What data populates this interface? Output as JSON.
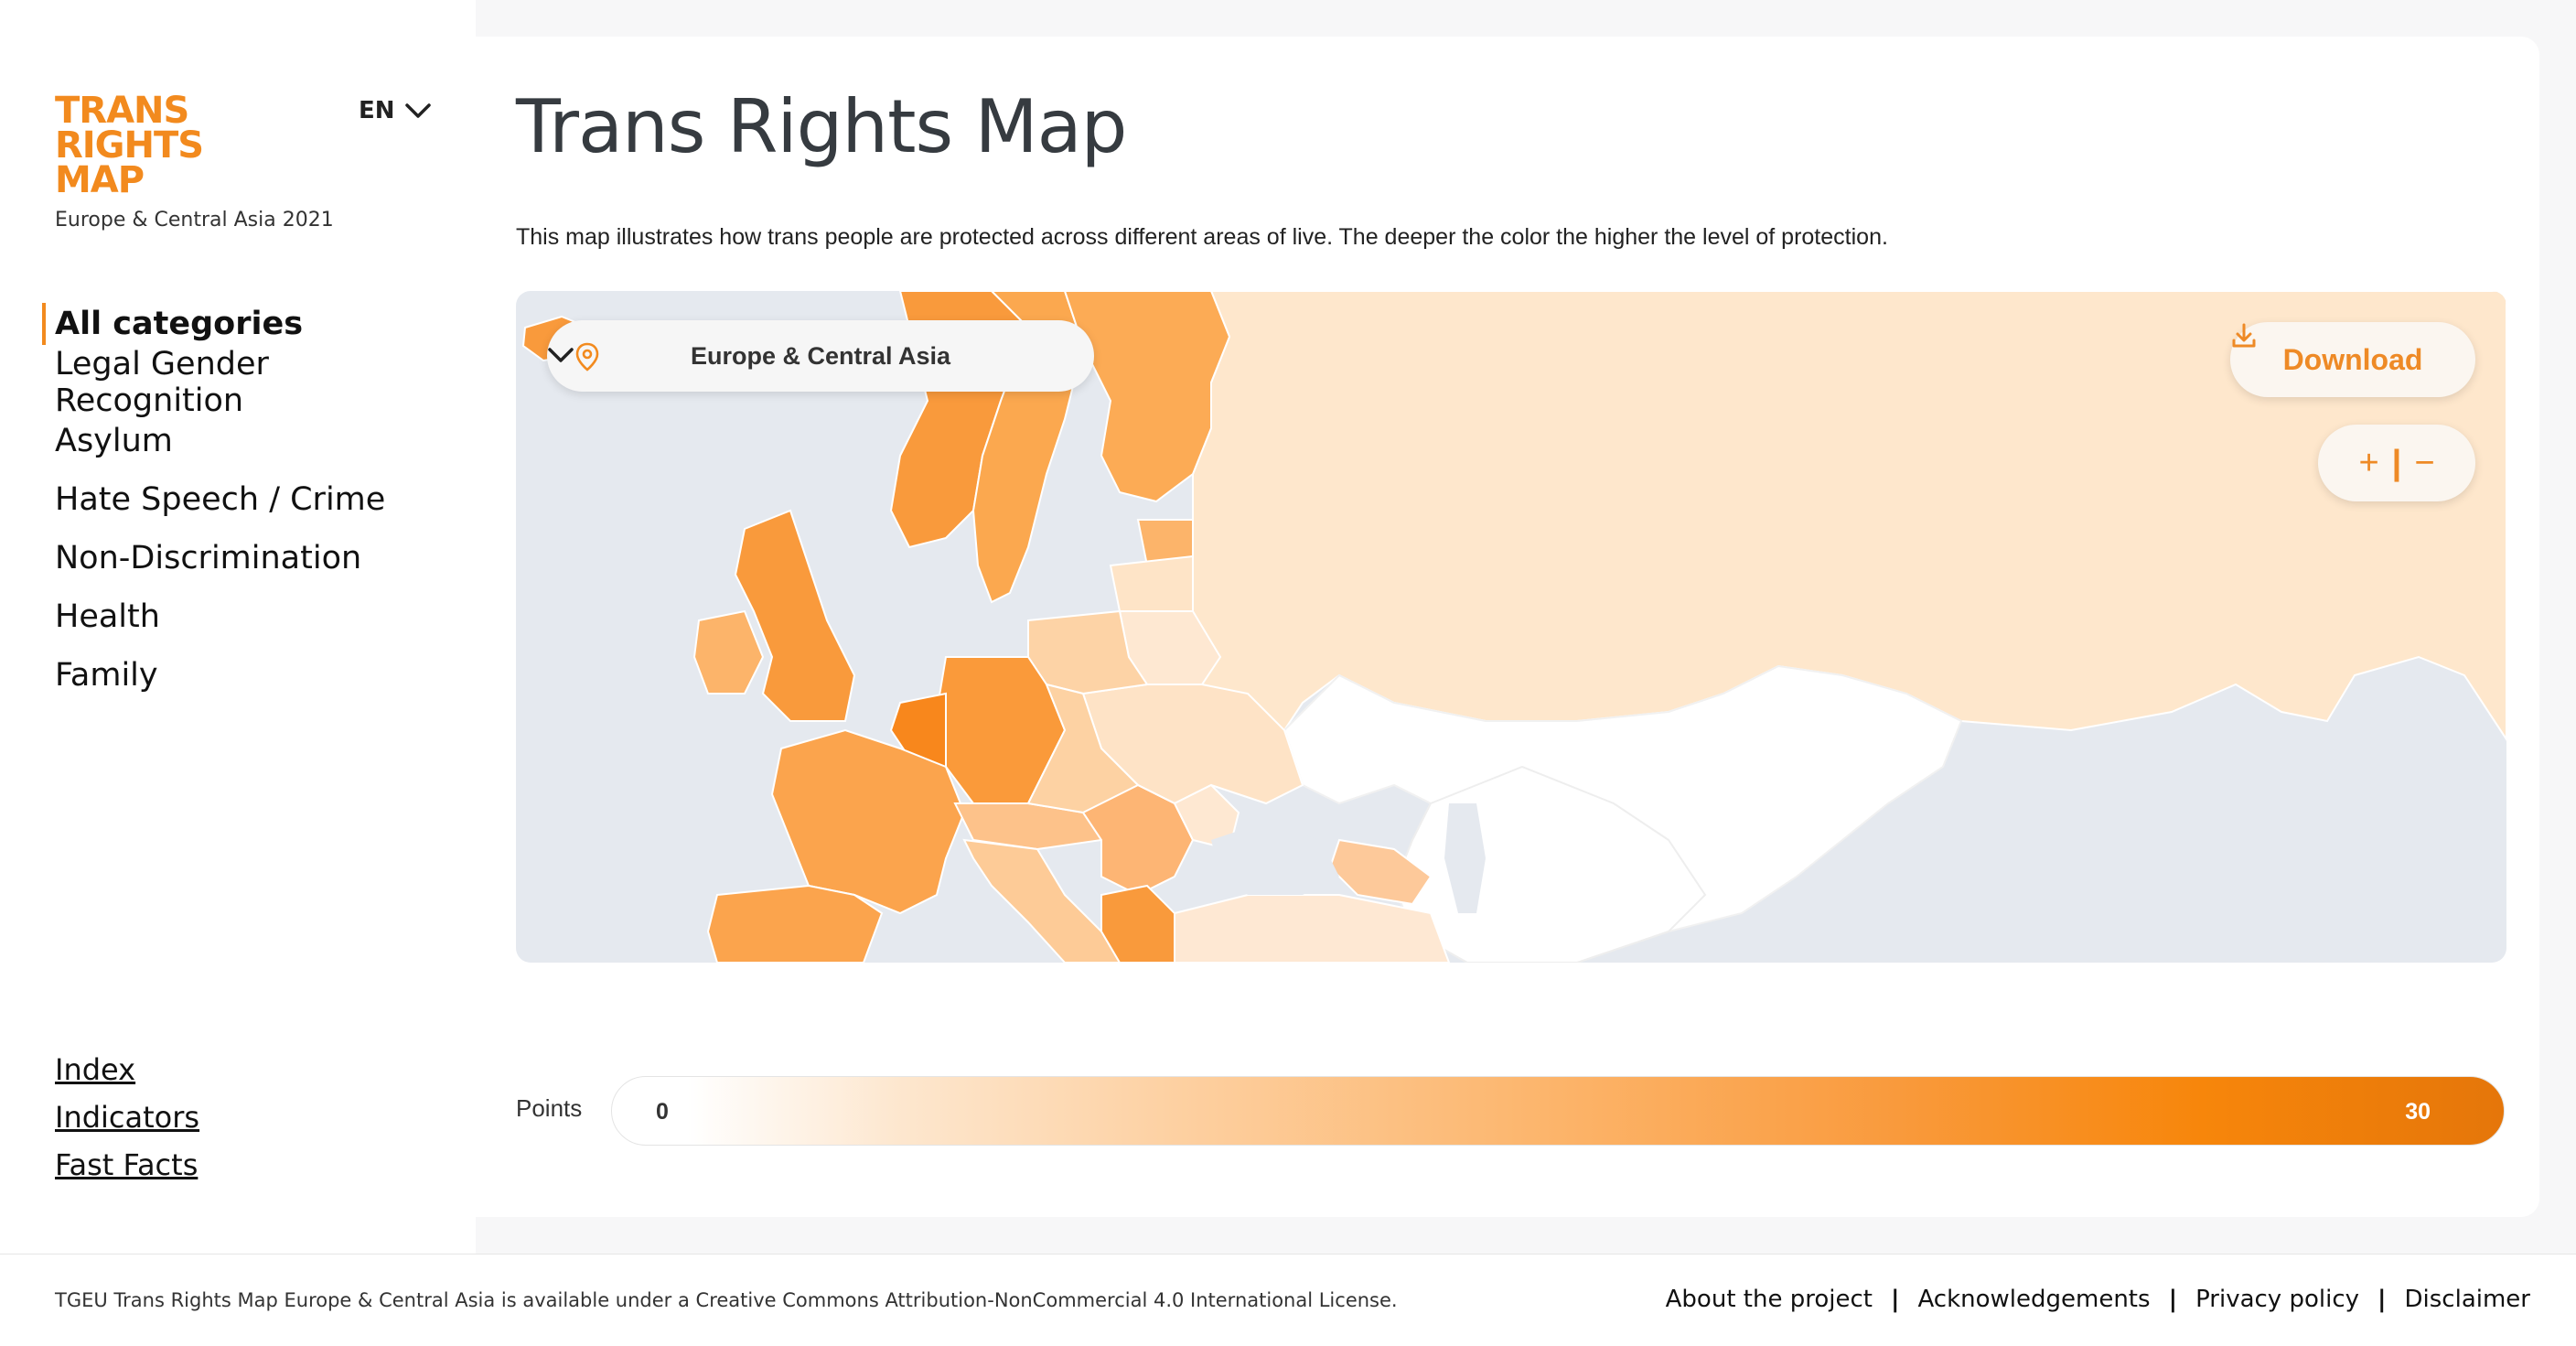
{
  "brand": {
    "logo_lines": [
      "TRANS",
      "RIGHTS",
      "MAP"
    ],
    "subtitle": "Europe & Central Asia 2021",
    "accent_color": "#f28a1e"
  },
  "language": {
    "selected": "EN",
    "icon": "chevron-down-icon"
  },
  "sidebar": {
    "categories": [
      {
        "label": "All categories",
        "active": true
      },
      {
        "label": "Legal Gender Recognition",
        "active": false
      },
      {
        "label": "Asylum",
        "active": false
      },
      {
        "label": "Hate Speech / Crime",
        "active": false
      },
      {
        "label": "Non-Discrimination",
        "active": false
      },
      {
        "label": "Health",
        "active": false
      },
      {
        "label": "Family",
        "active": false
      }
    ],
    "links": [
      "Index",
      "Indicators",
      "Fast Facts"
    ]
  },
  "main": {
    "title": "Trans Rights Map",
    "description": "This map illustrates how trans people are protected across different areas of live. The deeper the color the higher the level of protection."
  },
  "map": {
    "region_select": {
      "value": "Europe & Central Asia",
      "icon": "location-pin-icon"
    },
    "download": {
      "label": "Download",
      "icon": "download-icon"
    },
    "zoom": {
      "in_label": "+",
      "separator": "|",
      "out_label": "−"
    },
    "sea_color": "#e5e9ef"
  },
  "legend": {
    "label": "Points",
    "min": "0",
    "max": "30",
    "colors": [
      "#ffffff",
      "#fde7cf",
      "#fcb46a",
      "#f7860b",
      "#e5760a"
    ]
  },
  "footer": {
    "license": "TGEU Trans Rights Map Europe & Central Asia is available under a Creative Commons Attribution-NonCommercial 4.0 International License.",
    "links": [
      "About the project",
      "Acknowledgements",
      "Privacy policy",
      "Disclaimer"
    ],
    "separator": "|"
  }
}
